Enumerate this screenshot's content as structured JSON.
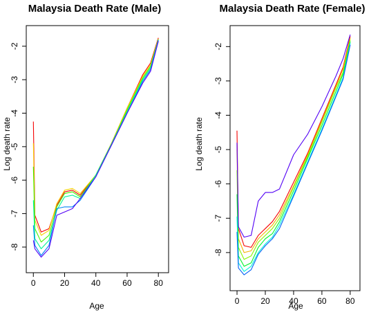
{
  "chart_data": [
    {
      "type": "line",
      "title": "Malaysia Death Rate (Male)",
      "xlabel": "Age",
      "ylabel": "Log death rate",
      "xlim": [
        -1,
        83
      ],
      "ylim": [
        -8.6,
        -1.55
      ],
      "xticks": [
        0,
        20,
        40,
        60,
        80
      ],
      "yticks": [
        -2,
        -3,
        -4,
        -5,
        -6,
        -7,
        -8
      ],
      "color_scale": "rainbow (red → yellow → green → cyan → blue → violet across series)",
      "series": [
        {
          "x": [
            0,
            1,
            5,
            10,
            15,
            20,
            25,
            30,
            40,
            50,
            60,
            70,
            75,
            80
          ],
          "y": [
            -4.25,
            -7.05,
            -7.55,
            -7.45,
            -6.75,
            -6.35,
            -6.3,
            -6.45,
            -5.85,
            -4.9,
            -3.85,
            -2.85,
            -2.5,
            -1.75
          ]
        },
        {
          "x": [
            0,
            1,
            5,
            10,
            15,
            20,
            25,
            30,
            40,
            50,
            60,
            70,
            75,
            80
          ],
          "y": [
            -4.9,
            -7.2,
            -7.65,
            -7.5,
            -6.7,
            -6.3,
            -6.25,
            -6.4,
            -5.85,
            -4.9,
            -3.85,
            -2.9,
            -2.55,
            -1.78
          ]
        },
        {
          "x": [
            0,
            1,
            5,
            10,
            15,
            20,
            25,
            30,
            40,
            50,
            60,
            70,
            75,
            80
          ],
          "y": [
            -5.6,
            -7.45,
            -7.85,
            -7.65,
            -6.8,
            -6.4,
            -6.35,
            -6.5,
            -5.85,
            -4.92,
            -3.9,
            -2.95,
            -2.6,
            -1.8
          ]
        },
        {
          "x": [
            0,
            1,
            5,
            10,
            15,
            20,
            25,
            30,
            40,
            50,
            60,
            70,
            75,
            80
          ],
          "y": [
            -6.6,
            -7.75,
            -8.05,
            -7.8,
            -6.9,
            -6.5,
            -6.45,
            -6.55,
            -5.85,
            -4.92,
            -3.95,
            -3.0,
            -2.65,
            -1.8
          ]
        },
        {
          "x": [
            0,
            1,
            5,
            10,
            15,
            20,
            25,
            30,
            40,
            50,
            60,
            70,
            75,
            80
          ],
          "y": [
            -7.35,
            -7.95,
            -8.25,
            -7.95,
            -6.85,
            -6.8,
            -6.8,
            -6.6,
            -5.9,
            -4.95,
            -4.0,
            -3.05,
            -2.7,
            -1.82
          ]
        },
        {
          "x": [
            0,
            1,
            5,
            10,
            15,
            20,
            25,
            30,
            40,
            50,
            60,
            70,
            75,
            80
          ],
          "y": [
            -7.8,
            -8.05,
            -8.3,
            -8.05,
            -7.05,
            -6.95,
            -6.85,
            -6.55,
            -5.9,
            -4.95,
            -4.0,
            -3.1,
            -2.75,
            -1.85
          ]
        }
      ]
    },
    {
      "type": "line",
      "title": "Malaysia Death Rate (Female)",
      "xlabel": "Age",
      "ylabel": "Log death rate",
      "xlim": [
        -1,
        83
      ],
      "ylim": [
        -8.95,
        -1.55
      ],
      "xticks": [
        0,
        20,
        40,
        60,
        80
      ],
      "yticks": [
        -2,
        -3,
        -4,
        -5,
        -6,
        -7,
        -8
      ],
      "color_scale": "rainbow (red → yellow → green → cyan → blue → violet across series)",
      "series": [
        {
          "x": [
            0,
            1,
            5,
            10,
            15,
            20,
            25,
            30,
            40,
            50,
            60,
            70,
            75,
            80
          ],
          "y": [
            -4.45,
            -7.3,
            -7.8,
            -7.85,
            -7.5,
            -7.3,
            -7.1,
            -6.8,
            -5.95,
            -5.1,
            -4.1,
            -3.1,
            -2.6,
            -1.7
          ]
        },
        {
          "x": [
            0,
            1,
            5,
            10,
            15,
            20,
            25,
            30,
            40,
            50,
            60,
            70,
            75,
            80
          ],
          "y": [
            -5.0,
            -7.6,
            -8.0,
            -7.95,
            -7.6,
            -7.4,
            -7.2,
            -6.9,
            -6.05,
            -5.15,
            -4.15,
            -3.15,
            -2.65,
            -1.75
          ]
        },
        {
          "x": [
            0,
            1,
            5,
            10,
            15,
            20,
            25,
            30,
            40,
            50,
            60,
            70,
            75,
            80
          ],
          "y": [
            -5.6,
            -7.85,
            -8.2,
            -8.1,
            -7.7,
            -7.5,
            -7.3,
            -7.0,
            -6.1,
            -5.2,
            -4.2,
            -3.2,
            -2.75,
            -1.8
          ]
        },
        {
          "x": [
            0,
            1,
            5,
            10,
            15,
            20,
            25,
            30,
            40,
            50,
            60,
            70,
            75,
            80
          ],
          "y": [
            -6.3,
            -8.1,
            -8.4,
            -8.3,
            -7.85,
            -7.6,
            -7.45,
            -7.1,
            -6.2,
            -5.25,
            -4.3,
            -3.3,
            -2.8,
            -1.85
          ]
        },
        {
          "x": [
            0,
            1,
            5,
            10,
            15,
            20,
            25,
            30,
            40,
            50,
            60,
            70,
            75,
            80
          ],
          "y": [
            -6.95,
            -8.3,
            -8.55,
            -8.4,
            -8.0,
            -7.75,
            -7.55,
            -7.2,
            -6.3,
            -5.35,
            -4.4,
            -3.4,
            -2.9,
            -1.9
          ]
        },
        {
          "x": [
            0,
            1,
            5,
            10,
            15,
            20,
            25,
            30,
            40,
            50,
            60,
            70,
            75,
            80
          ],
          "y": [
            -7.4,
            -8.45,
            -8.65,
            -8.5,
            -8.05,
            -7.8,
            -7.6,
            -7.3,
            -6.35,
            -5.4,
            -4.45,
            -3.45,
            -2.95,
            -1.95
          ]
        },
        {
          "x": [
            0,
            1,
            5,
            10,
            15,
            20,
            25,
            30,
            40,
            50,
            60,
            70,
            75,
            80
          ],
          "y": [
            -4.8,
            -7.25,
            -7.55,
            -7.5,
            -6.5,
            -6.25,
            -6.25,
            -6.15,
            -5.15,
            -4.55,
            -3.75,
            -2.85,
            -2.35,
            -1.65
          ]
        }
      ]
    }
  ]
}
